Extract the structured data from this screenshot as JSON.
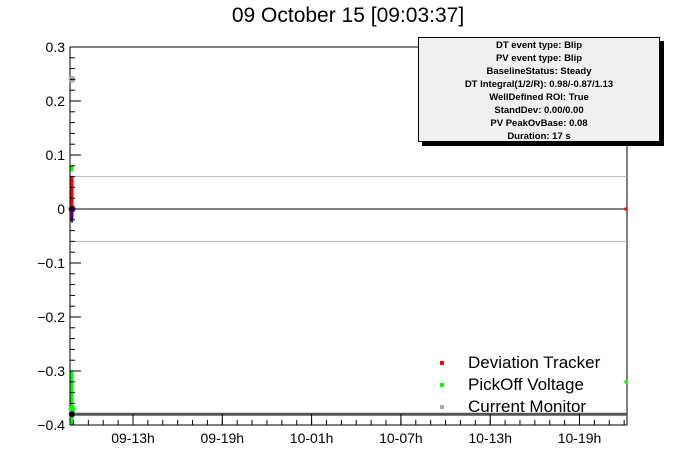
{
  "title": "09 October 15 [09:03:37]",
  "stats": {
    "lines": [
      "DT event type: Blip",
      "PV event type: Blip",
      "BaselineStatus: Steady",
      "DT Integral(1/2/R): 0.98/-0.87/1.13",
      "WellDefined ROI: True",
      "StandDev: 0.00/0.00",
      "PV PeakOvBase: 0.08",
      "Duration: 17 s"
    ]
  },
  "legend": [
    {
      "label": "Deviation Tracker",
      "color": "#ff0000"
    },
    {
      "label": "PickOff Voltage",
      "color": "#00ff00"
    },
    {
      "label": "Current Monitor",
      "color": "#aaaaaa"
    }
  ],
  "chart_data": {
    "type": "scatter",
    "title": "09 October 15 [09:03:37]",
    "xlabel": "",
    "ylabel": "",
    "ylim": [
      -0.4,
      0.3
    ],
    "y_ticks": [
      "0.3",
      "0.2",
      "0.1",
      "0",
      "−0.1",
      "−0.2",
      "−0.3",
      "−0.4"
    ],
    "x_ticks": [
      "09-13h",
      "09-19h",
      "10-01h",
      "10-07h",
      "10-13h",
      "10-19h"
    ],
    "reference_lines": [
      0.06,
      0,
      -0.06,
      -0.38
    ],
    "series": [
      {
        "name": "Deviation Tracker",
        "color": "#ff0000",
        "segments": [
          [
            0.06,
            -0.02
          ]
        ],
        "points": [
          {
            "t": "start",
            "y": 0
          },
          {
            "t": "end",
            "y": 0
          }
        ]
      },
      {
        "name": "PickOff Voltage",
        "color": "#00ff00",
        "segments": [
          [
            0.08,
            0.07
          ],
          [
            -0.3,
            -0.4
          ]
        ],
        "points": [
          {
            "t": "start",
            "y": -0.37
          },
          {
            "t": "end",
            "y": -0.32
          }
        ]
      },
      {
        "name": "Current Monitor",
        "color": "#aaaaaa",
        "segments": [],
        "points": [
          {
            "t": "start",
            "y": 0.24
          },
          {
            "t": "start",
            "y": -0.38
          }
        ]
      }
    ]
  }
}
